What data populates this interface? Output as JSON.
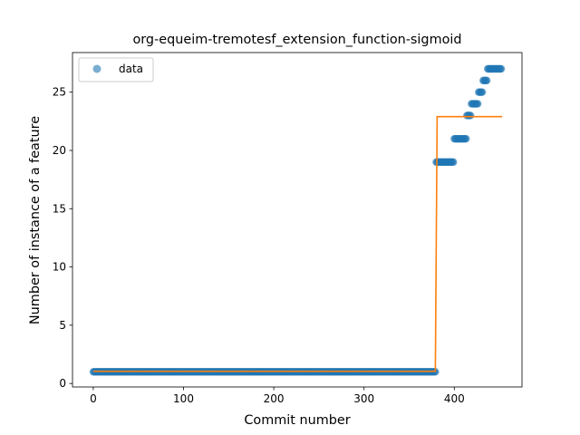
{
  "chart_data": {
    "type": "scatter",
    "title": "org-equeim-tremotesf_extension_function-sigmoid",
    "xlabel": "Commit number",
    "ylabel": "Number of instance of a feature",
    "xlim": [
      -23,
      475
    ],
    "ylim": [
      -0.3,
      28.4
    ],
    "xticks": [
      0,
      100,
      200,
      300,
      400
    ],
    "yticks": [
      0,
      5,
      10,
      15,
      20,
      25
    ],
    "grid": false,
    "legend": {
      "position": "upper-left",
      "entries": [
        "data"
      ]
    },
    "colors": {
      "data": "#1f77b4",
      "fit": "#ff7f0e"
    },
    "series": [
      {
        "name": "data",
        "kind": "points",
        "segments": [
          {
            "x_start": 0,
            "x_end": 380,
            "y": 1
          },
          {
            "x_start": 380,
            "x_end": 400,
            "y": 19
          },
          {
            "x_start": 400,
            "x_end": 414,
            "y": 21
          },
          {
            "x_start": 414,
            "x_end": 419,
            "y": 23
          },
          {
            "x_start": 419,
            "x_end": 427,
            "y": 24
          },
          {
            "x_start": 427,
            "x_end": 432,
            "y": 25
          },
          {
            "x_start": 432,
            "x_end": 437,
            "y": 26
          },
          {
            "x_start": 437,
            "x_end": 453,
            "y": 27
          }
        ]
      },
      {
        "kind": "line",
        "x": [
          0,
          379,
          380,
          381,
          453
        ],
        "y": [
          1.05,
          1.05,
          12.0,
          22.9,
          22.9
        ]
      }
    ]
  }
}
